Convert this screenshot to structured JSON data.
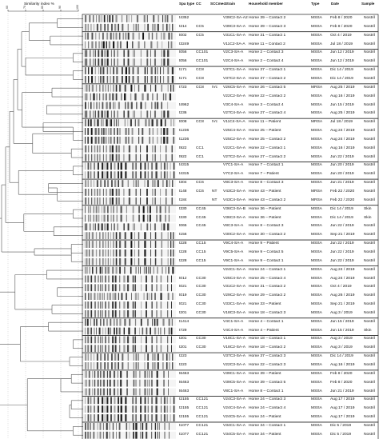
{
  "figure": {
    "similarity_label": "Similarity index %",
    "scale_ticks": [
      "60",
      "70",
      "80",
      "90",
      "100"
    ],
    "headers": {
      "spa_type": "Spa type",
      "cc": "CC",
      "sccmec": "SCCmec",
      "strain": "Strain",
      "household_member": "Household member",
      "type": "Type",
      "date": "Date",
      "sample": "Sample"
    },
    "rows": [
      {
        "spa": "t4352",
        "cc": "",
        "sccmec": "",
        "strain": "V39C2-SA-A2",
        "member": "Home 39 – Contact 2",
        "type": "MSSA",
        "date": "Feb 8 / 2020",
        "sample": "Nostril"
      },
      {
        "spa": "t214",
        "cc": "CC5",
        "sccmec": "",
        "strain": "V39C3-SA-A",
        "member": "Home 39 – Contact 3",
        "type": "MSSA",
        "date": "Feb 8 / 2020",
        "sample": "Nostril"
      },
      {
        "spa": "t002",
        "cc": "CC5",
        "sccmec": "",
        "strain": "V31C1-SA-A",
        "member": "Home 31 – Contact 1",
        "type": "MSSA",
        "date": "Oct 4 / 2019",
        "sample": "Nostril"
      },
      {
        "spa": "t3249",
        "cc": "",
        "sccmec": "",
        "strain": "V11C2-SA-A",
        "member": "Home 11 – Contact 2",
        "type": "MSSA",
        "date": "Jul 18 / 2019",
        "sample": "Nostril"
      },
      {
        "spa": "t056",
        "cc": "CC101",
        "sccmec": "",
        "strain": "V2C3-SA-A",
        "member": "Home 2 – Contact 3",
        "type": "MSSA",
        "date": "Jun 12 / 2019",
        "sample": "Nostril"
      },
      {
        "spa": "t056",
        "cc": "CC101",
        "sccmec": "",
        "strain": "V2C4-SA-A",
        "member": "Home 2 – Contact 4",
        "type": "MSSA",
        "date": "Jun 12 / 2019",
        "sample": "Nostril"
      },
      {
        "spa": "t171",
        "cc": "CC8",
        "sccmec": "",
        "strain": "V37C1-SA-A",
        "member": "Home 37 – Contact 1",
        "type": "MSSA",
        "date": "Dic 14 / 2019",
        "sample": "Nostril"
      },
      {
        "spa": "t171",
        "cc": "CC8",
        "sccmec": "",
        "strain": "V37C2-SA-A",
        "member": "Home 37 – Contact 2",
        "type": "MSSA",
        "date": "Dic 14 / 2019",
        "sample": "Nostril"
      },
      {
        "spa": "t723",
        "cc": "CC8",
        "sccmec": "IVc",
        "strain": "V26C5-SA-A",
        "member": "Home 26 – Contact 5",
        "type": "MRSA",
        "date": "Aug 25 / 2019",
        "sample": "Nostril"
      },
      {
        "spa": "",
        "cc": "",
        "sccmec": "",
        "strain": "V22C2-SA-A",
        "member": "Home 22 – Contact 2",
        "type": "MSSA",
        "date": "Aug 16 / 2019",
        "sample": "Nostril"
      },
      {
        "spa": "t4962",
        "cc": "",
        "sccmec": "",
        "strain": "V3C4-SA-A",
        "member": "Home 3 – Contact 4",
        "type": "MSSA",
        "date": "Jun 15 / 2019",
        "sample": "Nostril"
      },
      {
        "spa": "t236",
        "cc": "",
        "sccmec": "",
        "strain": "V27C4-SA-A",
        "member": "Home 27 – Contact 4",
        "type": "MSSA",
        "date": "Aug 25 / 2019",
        "sample": "Nostril"
      },
      {
        "spa": "t008",
        "cc": "CC8",
        "sccmec": "IVc",
        "strain": "V11C4-SA-A",
        "member": "Home 11 – Patient",
        "type": "MRSA",
        "date": "Jul 18 / 2019",
        "sample": "Nostril"
      },
      {
        "spa": "t1236",
        "cc": "",
        "sccmec": "",
        "strain": "V25C4-SA-A",
        "member": "Home 25 – Patient",
        "type": "MSSA",
        "date": "Aug 24 / 2019",
        "sample": "Nostril"
      },
      {
        "spa": "t1236",
        "cc": "",
        "sccmec": "",
        "strain": "V25C2-SA-A",
        "member": "Home 25 – Contact 2",
        "type": "MSSA",
        "date": "Aug 24 / 2019",
        "sample": "Nostril"
      },
      {
        "spa": "t922",
        "cc": "CC1",
        "sccmec": "",
        "strain": "V22C1-SA-A",
        "member": "Home 22 – Contact 1",
        "type": "MSSA",
        "date": "Aug 16 / 2019",
        "sample": "Nostril"
      },
      {
        "spa": "t922",
        "cc": "CC1",
        "sccmec": "",
        "strain": "V27C2-SA-A",
        "member": "Home 27 – Contact 2",
        "type": "MSSA",
        "date": "Jun 22 / 2019",
        "sample": "Nostril"
      },
      {
        "spa": "t4315",
        "cc": "",
        "sccmec": "",
        "strain": "V7C1-SA-A",
        "member": "Home 7 – Contact 1",
        "type": "MSSA",
        "date": "Jun 20 / 2019",
        "sample": "Nostril"
      },
      {
        "spa": "t4315",
        "cc": "",
        "sccmec": "",
        "strain": "V7C2-SA-A",
        "member": "Home 7 – Patient",
        "type": "MSSA",
        "date": "Jun 20 / 2019",
        "sample": "Nostril"
      },
      {
        "spa": "t304",
        "cc": "CC6",
        "sccmec": "",
        "strain": "V8C3-SA-A",
        "member": "Home 8 – Contact 3",
        "type": "MSSA",
        "date": "Jun 21 / 2019",
        "sample": "Nostril"
      },
      {
        "spa": "t148",
        "cc": "CC6",
        "sccmec": "NT",
        "strain": "V43C3-SA-A",
        "member": "Home 43 – Patient",
        "type": "MRSA",
        "date": "Feb 22 / 2020",
        "sample": "Nostril"
      },
      {
        "spa": "t184",
        "cc": "",
        "sccmec": "NT",
        "strain": "V43C4-SA-A",
        "member": "Home 43 – Contact 2",
        "type": "MRSA",
        "date": "Feb 22 / 2020",
        "sample": "Nostril"
      },
      {
        "spa": "t330",
        "cc": "CC45",
        "sccmec": "",
        "strain": "V36C3-SA-B",
        "member": "Home 36 – Patient",
        "type": "MSSA",
        "date": "Dic 14 / 2019",
        "sample": "Skin"
      },
      {
        "spa": "t330",
        "cc": "CC45",
        "sccmec": "",
        "strain": "V36C3-SA-A",
        "member": "Home 36 – Patient",
        "type": "MSSA",
        "date": "Dic 14 / 2019",
        "sample": "Skin"
      },
      {
        "spa": "t065",
        "cc": "CC45",
        "sccmec": "",
        "strain": "V8C3-SA-A",
        "member": "Home 8 – Contact 3",
        "type": "MSSA",
        "date": "Jun 22 / 2019",
        "sample": "Nostril"
      },
      {
        "spa": "t156",
        "cc": "",
        "sccmec": "",
        "strain": "V30C2-SA-A",
        "member": "Home 30 – Contact 2",
        "type": "MSSA",
        "date": "Sep 21 / 2019",
        "sample": "Nostril"
      },
      {
        "spa": "t228",
        "cc": "CC15",
        "sccmec": "",
        "strain": "V9C4-SA-A",
        "member": "Home 9 – Patient",
        "type": "MSSA",
        "date": "Jun 22 / 2019",
        "sample": "Nostril"
      },
      {
        "spa": "t228",
        "cc": "CC15",
        "sccmec": "",
        "strain": "V9C5-SA-A",
        "member": "Home 9 – Contact 5",
        "type": "MSSA",
        "date": "Jun 22 / 2019",
        "sample": "Nostril"
      },
      {
        "spa": "t228",
        "cc": "CC15",
        "sccmec": "",
        "strain": "V9C1-SA-A",
        "member": "Home 9 – Contact 1",
        "type": "MSSA",
        "date": "Jun 22 / 2019",
        "sample": "Nostril"
      },
      {
        "spa": "",
        "cc": "",
        "sccmec": "",
        "strain": "V24C1-SA-A",
        "member": "Home 24 – Contact 1",
        "type": "MSSA",
        "date": "Aug 24 / 2019",
        "sample": "Nostril"
      },
      {
        "spa": "t012",
        "cc": "CC30",
        "sccmec": "",
        "strain": "V25C4-SA-A",
        "member": "Home 25 – Contact 4",
        "type": "MSSA",
        "date": "Aug 24 / 2019",
        "sample": "Nostril"
      },
      {
        "spa": "t021",
        "cc": "CC30",
        "sccmec": "",
        "strain": "V31C2-SA-A",
        "member": "Home 31 – Contact 2",
        "type": "MSSA",
        "date": "Oct 4 / 2019",
        "sample": "Nostril"
      },
      {
        "spa": "t019",
        "cc": "CC30",
        "sccmec": "",
        "strain": "V29C2-SA-A",
        "member": "Home 29 – Contact 2",
        "type": "MSSA",
        "date": "Aug 26 / 2019",
        "sample": "Nostril"
      },
      {
        "spa": "t021",
        "cc": "CC30",
        "sccmec": "",
        "strain": "V33C1-SA-A",
        "member": "Home 33 – Patient",
        "type": "MSSA",
        "date": "Sep 21 / 2019",
        "sample": "Nostril"
      },
      {
        "spa": "t201",
        "cc": "CC30",
        "sccmec": "",
        "strain": "V18C3-SA-A",
        "member": "Home 18 – Contact 3",
        "type": "MSSA",
        "date": "Aug 3 / 2019",
        "sample": "Nostril"
      },
      {
        "spa": "t1414",
        "cc": "",
        "sccmec": "",
        "strain": "V4C1-SA-A",
        "member": "Home 4 – Contact 1",
        "type": "MSSA",
        "date": "Jun 15 / 2019",
        "sample": "Nostril"
      },
      {
        "spa": "t729",
        "cc": "",
        "sccmec": "",
        "strain": "V4C4-SA-A",
        "member": "Home 4 – Patient",
        "type": "MSSA",
        "date": "Jun 15 / 2019",
        "sample": "Skin"
      },
      {
        "spa": "t201",
        "cc": "CC30",
        "sccmec": "",
        "strain": "V18C1-SA-A",
        "member": "Home 18 – Contact 1",
        "type": "MSSA",
        "date": "Aug 3 / 2019",
        "sample": "Nostril"
      },
      {
        "spa": "t201",
        "cc": "CC30",
        "sccmec": "",
        "strain": "V18C2-SA-A",
        "member": "Home 18 – Contact 2",
        "type": "MSSA",
        "date": "Aug 3 / 2019",
        "sample": "Nostril"
      },
      {
        "spa": "t223",
        "cc": "",
        "sccmec": "",
        "strain": "V37C3-SA-A",
        "member": "Home 37 – Contact 3",
        "type": "MSSA",
        "date": "Dic 14 / 2019",
        "sample": "Nostril"
      },
      {
        "spa": "t223",
        "cc": "",
        "sccmec": "",
        "strain": "V22C3-SA-A",
        "member": "Home 22 – Contact 3",
        "type": "MSSA",
        "date": "Aug 16 / 2019",
        "sample": "Nostril"
      },
      {
        "spa": "t6463",
        "cc": "",
        "sccmec": "",
        "strain": "V39C1-SA-A",
        "member": "Home 39 – Patient",
        "type": "MSSA",
        "date": "Feb 8 / 2020",
        "sample": "Nostril"
      },
      {
        "spa": "t6463",
        "cc": "",
        "sccmec": "",
        "strain": "V39C5-SA-A",
        "member": "Home 39 – Contact 5",
        "type": "MSSA",
        "date": "Feb 8 / 2020",
        "sample": "Nostril"
      },
      {
        "spa": "t6463",
        "cc": "",
        "sccmec": "",
        "strain": "V8C1-SA-A",
        "member": "Home 8 – Contact 1",
        "type": "MSSA",
        "date": "Jun 21 / 2019",
        "sample": "Nostril"
      },
      {
        "spa": "t2155",
        "cc": "CC121",
        "sccmec": "",
        "strain": "V24C3-SA-A",
        "member": "Home 24 – Contact 3",
        "type": "MSSA",
        "date": "Aug 17 / 2019",
        "sample": "Nostril"
      },
      {
        "spa": "t2155",
        "cc": "CC121",
        "sccmec": "",
        "strain": "V24C4-SA-A",
        "member": "Home 24 – Contact 4",
        "type": "MSSA",
        "date": "Aug 17 / 2019",
        "sample": "Nostril"
      },
      {
        "spa": "t2155",
        "cc": "CC121",
        "sccmec": "",
        "strain": "V24C5-SA-A",
        "member": "Home 24 – Patient",
        "type": "MSSA",
        "date": "Aug 17 / 2019",
        "sample": "Nostril"
      },
      {
        "spa": "t1077",
        "cc": "CC121",
        "sccmec": "",
        "strain": "V34C1-SA-A",
        "member": "Home 34 – Contact 1",
        "type": "MSSA",
        "date": "Dic 5 / 2019",
        "sample": "Nostril"
      },
      {
        "spa": "t1077",
        "cc": "CC121",
        "sccmec": "",
        "strain": "V34C5-SA-A",
        "member": "Home 34 – Patient",
        "type": "MSSA",
        "date": "Dic 5 / 2019",
        "sample": "Nostril"
      }
    ]
  }
}
